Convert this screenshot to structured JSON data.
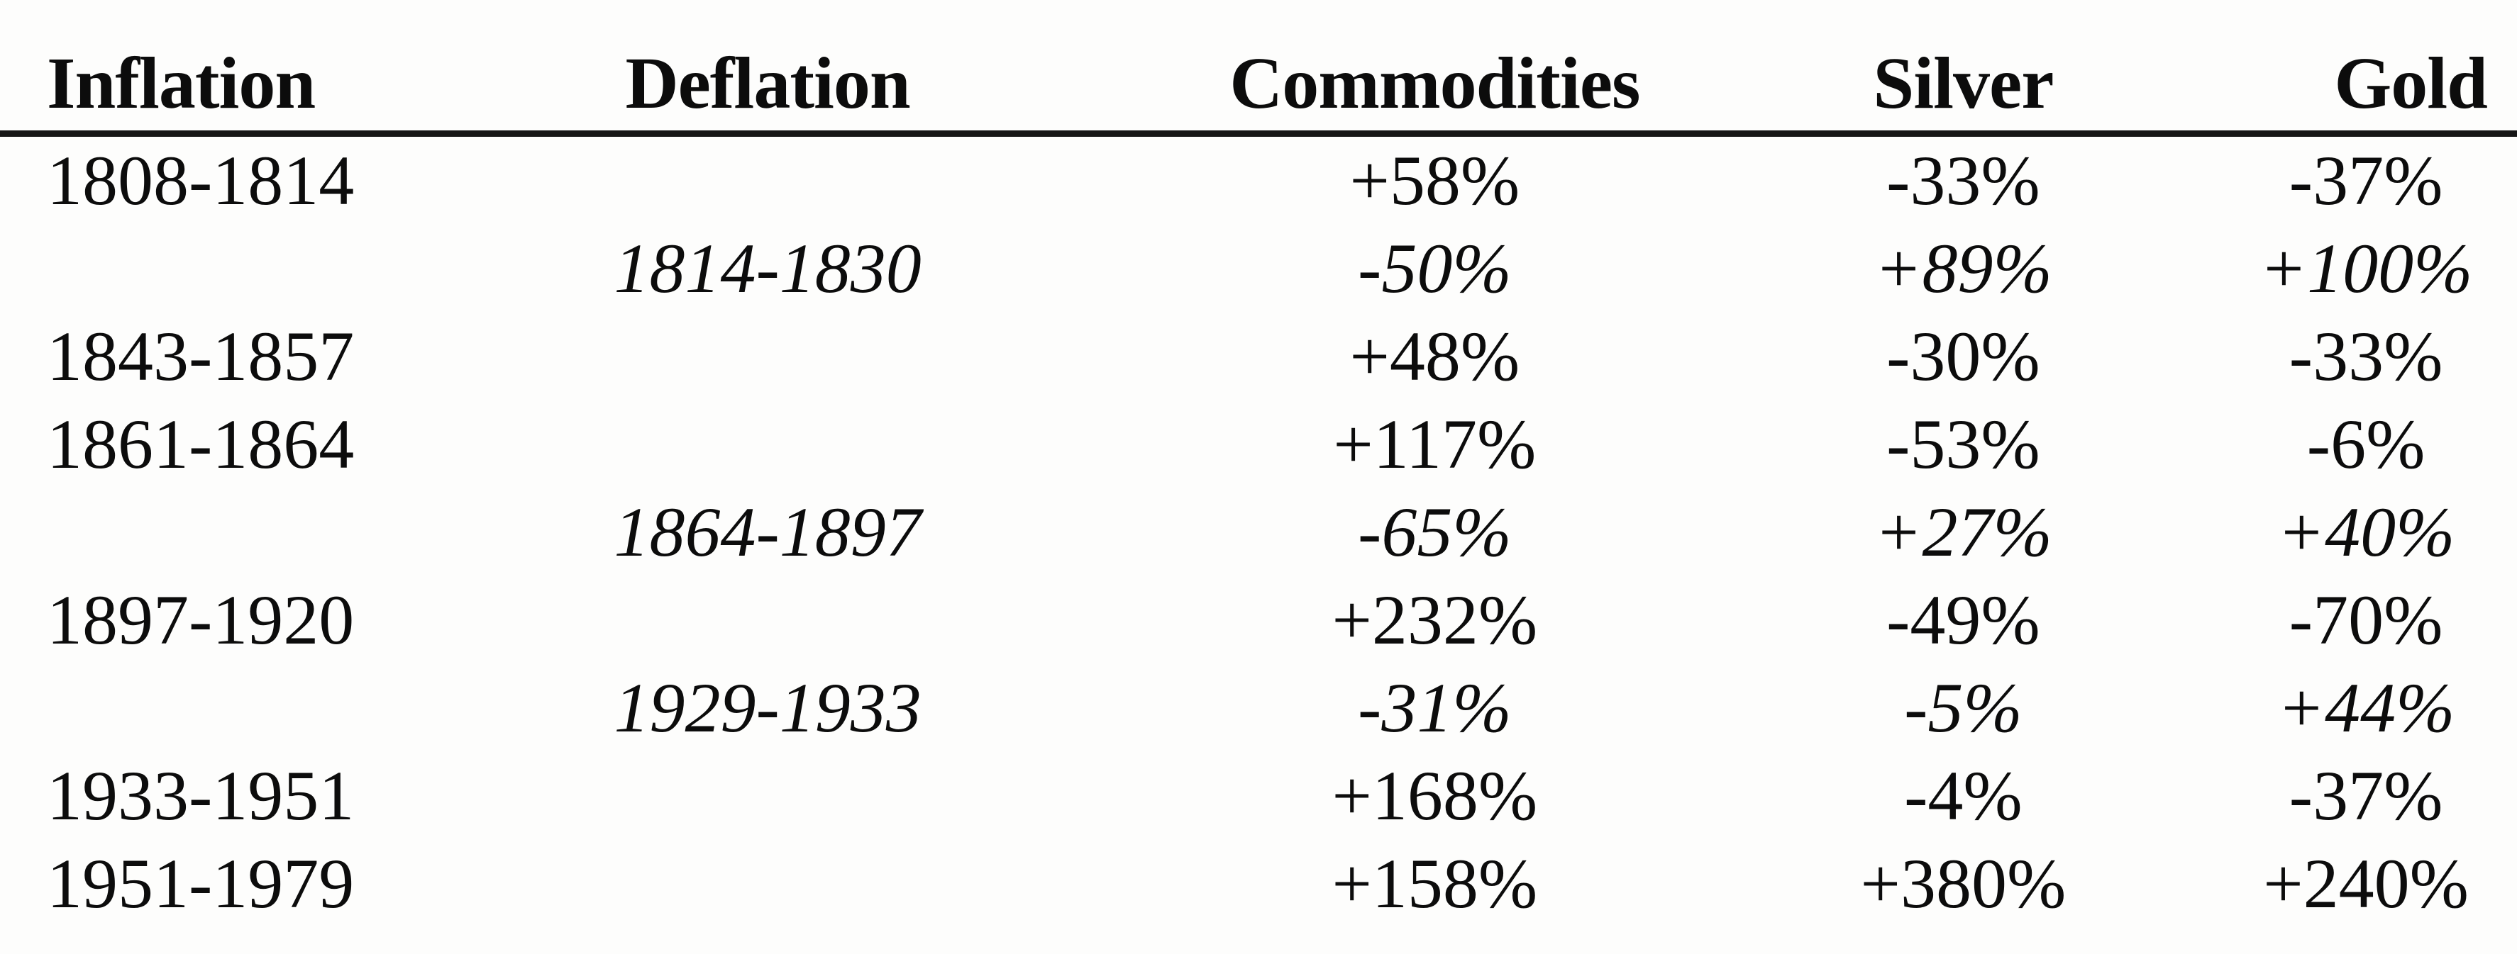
{
  "page": {
    "background": "#fdfdfc",
    "text_color": "#0c0c0c",
    "rule_color": "#161616"
  },
  "table": {
    "columns": [
      "Inflation",
      "Deflation",
      "Commodities",
      "Silver",
      "Gold"
    ],
    "rows": [
      {
        "period_type": "inflation",
        "inflation": "1808-1814",
        "deflation": "",
        "commodities": "+58%",
        "silver": "-33%",
        "gold": "-37%"
      },
      {
        "period_type": "deflation",
        "inflation": "",
        "deflation": "1814-1830",
        "commodities": "-50%",
        "silver": "+89%",
        "gold": "+100%"
      },
      {
        "period_type": "inflation",
        "inflation": "1843-1857",
        "deflation": "",
        "commodities": "+48%",
        "silver": "-30%",
        "gold": "-33%"
      },
      {
        "period_type": "inflation",
        "inflation": "1861-1864",
        "deflation": "",
        "commodities": "+117%",
        "silver": "-53%",
        "gold": "-6%"
      },
      {
        "period_type": "deflation",
        "inflation": "",
        "deflation": "1864-1897",
        "commodities": "-65%",
        "silver": "+27%",
        "gold": "+40%"
      },
      {
        "period_type": "inflation",
        "inflation": "1897-1920",
        "deflation": "",
        "commodities": "+232%",
        "silver": "-49%",
        "gold": "-70%"
      },
      {
        "period_type": "deflation",
        "inflation": "",
        "deflation": "1929-1933",
        "commodities": "-31%",
        "silver": "-5%",
        "gold": "+44%"
      },
      {
        "period_type": "inflation",
        "inflation": "1933-1951",
        "deflation": "",
        "commodities": "+168%",
        "silver": "-4%",
        "gold": "-37%"
      },
      {
        "period_type": "inflation",
        "inflation": "1951-1979",
        "deflation": "",
        "commodities": "+158%",
        "silver": "+380%",
        "gold": "+240%"
      }
    ]
  }
}
